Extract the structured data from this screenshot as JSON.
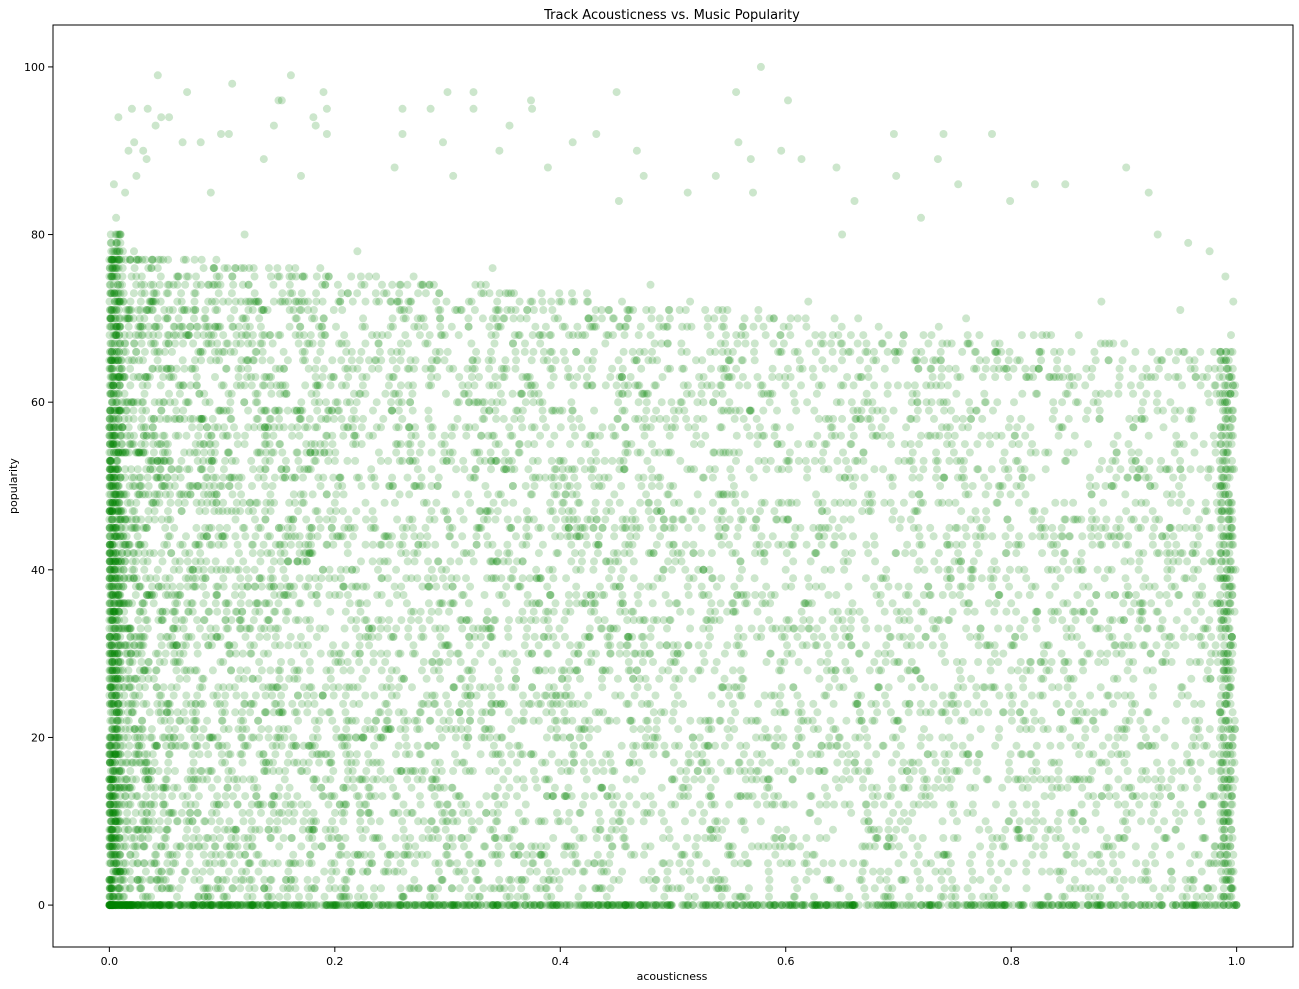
{
  "chart_data": {
    "type": "scatter",
    "title": "Track Acousticness vs. Music Popularity",
    "xlabel": "acousticness",
    "ylabel": "popularity",
    "xlim": [
      -0.05,
      1.05
    ],
    "ylim": [
      -5,
      105
    ],
    "x_ticks": [
      0.0,
      0.2,
      0.4,
      0.6,
      0.8,
      1.0
    ],
    "x_tick_labels": [
      "0.0",
      "0.2",
      "0.4",
      "0.6",
      "0.8",
      "1.0"
    ],
    "y_ticks": [
      0,
      20,
      40,
      60,
      80,
      100
    ],
    "y_tick_labels": [
      "0",
      "20",
      "40",
      "60",
      "80",
      "100"
    ],
    "grid": false,
    "legend": "none",
    "color": "#008000",
    "point_alpha": 0.2,
    "point_count_note": "dense cloud of many thousands of tracks; representative sample below",
    "series": [
      {
        "points": [
          [
            0.578,
            100
          ],
          [
            0.043,
            99
          ],
          [
            0.161,
            99
          ],
          [
            0.109,
            98
          ],
          [
            0.069,
            97
          ],
          [
            0.19,
            97
          ],
          [
            0.3,
            97
          ],
          [
            0.323,
            97
          ],
          [
            0.45,
            97
          ],
          [
            0.556,
            97
          ],
          [
            0.15,
            96
          ],
          [
            0.153,
            96
          ],
          [
            0.374,
            96
          ],
          [
            0.602,
            96
          ],
          [
            0.02,
            95
          ],
          [
            0.034,
            95
          ],
          [
            0.193,
            95
          ],
          [
            0.26,
            95
          ],
          [
            0.285,
            95
          ],
          [
            0.323,
            95
          ],
          [
            0.375,
            95
          ],
          [
            0.008,
            94
          ],
          [
            0.046,
            94
          ],
          [
            0.053,
            94
          ],
          [
            0.181,
            94
          ],
          [
            0.041,
            93
          ],
          [
            0.146,
            93
          ],
          [
            0.183,
            93
          ],
          [
            0.355,
            93
          ],
          [
            0.099,
            92
          ],
          [
            0.193,
            92
          ],
          [
            0.106,
            92
          ],
          [
            0.26,
            92
          ],
          [
            0.432,
            92
          ],
          [
            0.696,
            92
          ],
          [
            0.74,
            92
          ],
          [
            0.783,
            92
          ],
          [
            0.022,
            91
          ],
          [
            0.065,
            91
          ],
          [
            0.081,
            91
          ],
          [
            0.296,
            91
          ],
          [
            0.558,
            91
          ],
          [
            0.411,
            91
          ],
          [
            0.017,
            90
          ],
          [
            0.03,
            90
          ],
          [
            0.346,
            90
          ],
          [
            0.468,
            90
          ],
          [
            0.596,
            90
          ],
          [
            0.033,
            89
          ],
          [
            0.137,
            89
          ],
          [
            0.569,
            89
          ],
          [
            0.614,
            89
          ],
          [
            0.735,
            89
          ],
          [
            0.902,
            88
          ],
          [
            0.645,
            88
          ],
          [
            0.389,
            88
          ],
          [
            0.253,
            88
          ],
          [
            0.024,
            87
          ],
          [
            0.17,
            87
          ],
          [
            0.305,
            87
          ],
          [
            0.474,
            87
          ],
          [
            0.538,
            87
          ],
          [
            0.698,
            87
          ],
          [
            0.821,
            86
          ],
          [
            0.848,
            86
          ],
          [
            0.753,
            86
          ],
          [
            0.922,
            85
          ],
          [
            0.513,
            85
          ],
          [
            0.571,
            85
          ],
          [
            0.014,
            85
          ],
          [
            0.09,
            85
          ],
          [
            0.799,
            84
          ],
          [
            0.661,
            84
          ],
          [
            0.452,
            84
          ],
          [
            0.93,
            80
          ],
          [
            0.957,
            79
          ],
          [
            0.976,
            78
          ],
          [
            0.99,
            75
          ],
          [
            0.997,
            72
          ],
          [
            0.995,
            68
          ],
          [
            0.98,
            66
          ],
          [
            0.95,
            71
          ],
          [
            0.88,
            72
          ],
          [
            0.72,
            82
          ],
          [
            0.65,
            80
          ],
          [
            0.004,
            86
          ],
          [
            0.006,
            82
          ],
          [
            0.01,
            80
          ],
          [
            0.012,
            78
          ],
          [
            0.003,
            76
          ],
          [
            0.12,
            80
          ],
          [
            0.22,
            78
          ],
          [
            0.34,
            76
          ],
          [
            0.48,
            74
          ],
          [
            0.62,
            72
          ],
          [
            0.76,
            70
          ],
          [
            0.86,
            68
          ],
          [
            0.94,
            66
          ],
          [
            0.05,
            70
          ],
          [
            0.15,
            68
          ],
          [
            0.25,
            66
          ],
          [
            0.35,
            64
          ],
          [
            0.45,
            62
          ],
          [
            0.55,
            60
          ],
          [
            0.65,
            58
          ],
          [
            0.75,
            56
          ],
          [
            0.85,
            54
          ],
          [
            0.95,
            52
          ],
          [
            0.1,
            50
          ],
          [
            0.2,
            48
          ],
          [
            0.3,
            46
          ],
          [
            0.4,
            44
          ],
          [
            0.5,
            42
          ],
          [
            0.6,
            40
          ],
          [
            0.7,
            38
          ],
          [
            0.8,
            36
          ],
          [
            0.9,
            34
          ],
          [
            0.99,
            32
          ],
          [
            0.05,
            30
          ],
          [
            0.15,
            28
          ],
          [
            0.25,
            26
          ],
          [
            0.35,
            24
          ],
          [
            0.45,
            22
          ],
          [
            0.55,
            20
          ],
          [
            0.65,
            18
          ],
          [
            0.75,
            16
          ],
          [
            0.85,
            14
          ],
          [
            0.95,
            12
          ],
          [
            0.06,
            10
          ],
          [
            0.18,
            8
          ],
          [
            0.3,
            6
          ],
          [
            0.42,
            4
          ],
          [
            0.54,
            2
          ],
          [
            0.66,
            0
          ],
          [
            0.78,
            1
          ],
          [
            0.9,
            3
          ],
          [
            0.98,
            5
          ],
          [
            0.03,
            7
          ],
          [
            0.11,
            9
          ],
          [
            0.23,
            11
          ],
          [
            0.31,
            13
          ],
          [
            0.39,
            15
          ],
          [
            0.47,
            17
          ],
          [
            0.59,
            19
          ],
          [
            0.67,
            21
          ]
        ]
      }
    ]
  }
}
